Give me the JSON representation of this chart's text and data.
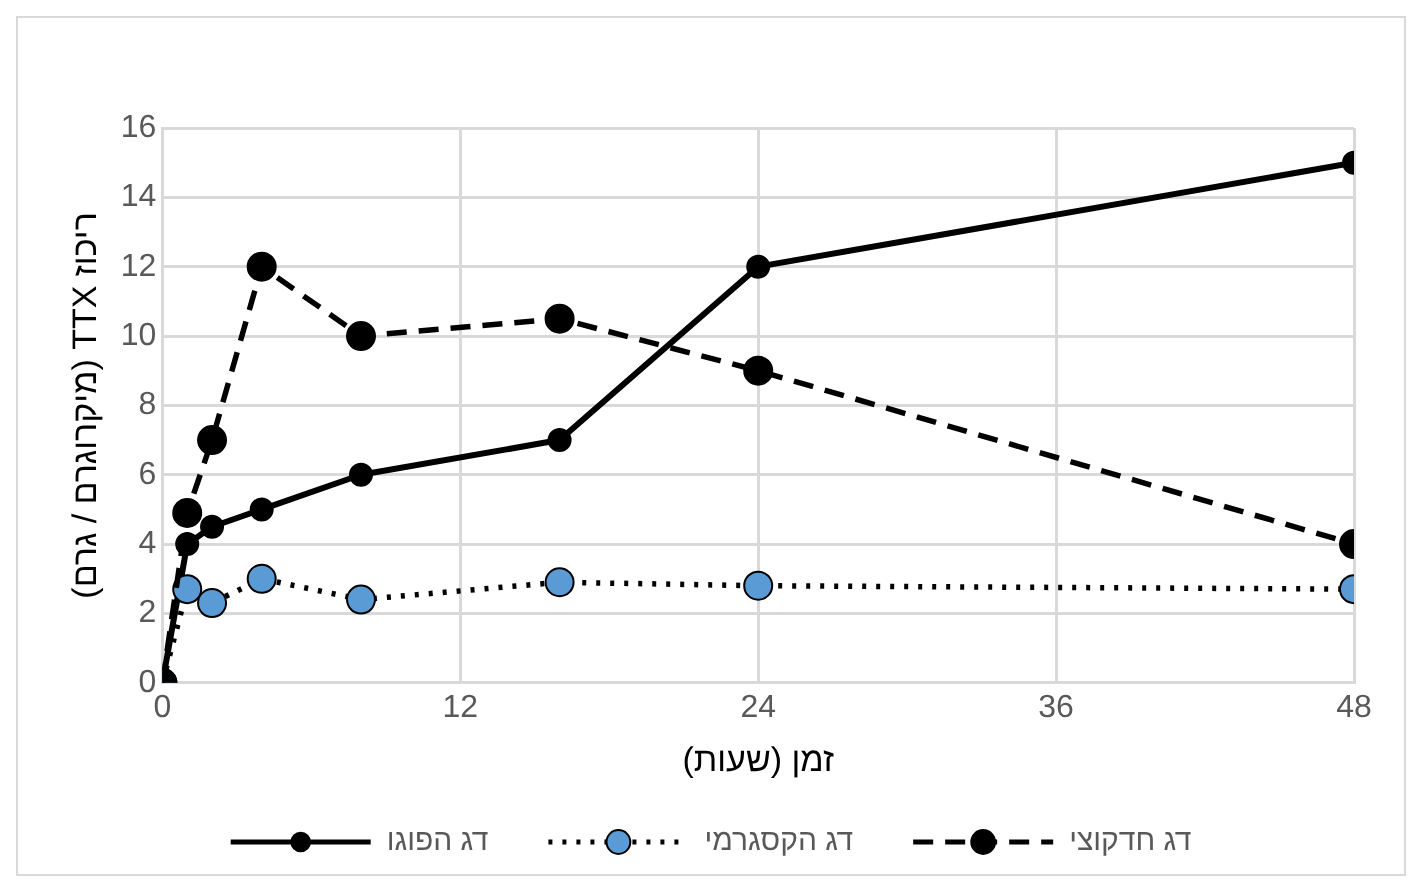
{
  "chart_data": {
    "type": "line",
    "xlabel": "זמן (שעות)",
    "ylabel": "ריכוז TTX (מיקרוגרם / גרם)",
    "x": [
      0,
      1,
      2,
      4,
      8,
      16,
      24,
      48
    ],
    "series": [
      {
        "name": "דג הפוגו",
        "color": "#000000",
        "line_style": "solid",
        "values": [
          0,
          4,
          4.5,
          5,
          6,
          7,
          12,
          15
        ]
      },
      {
        "name": "דג הקסגרמי",
        "color": "#5b9bd5",
        "line_style": "dotted",
        "values": [
          0,
          2.7,
          2.3,
          3,
          2.4,
          2.9,
          2.8,
          2.7
        ]
      },
      {
        "name": "דג חדקוצי",
        "color": "#000000",
        "line_style": "dashed",
        "values": [
          0,
          4.9,
          7,
          12,
          10,
          10.5,
          9,
          4
        ]
      }
    ],
    "xlim": [
      0,
      48
    ],
    "xticks": [
      0,
      12,
      24,
      36,
      48
    ],
    "ylim": [
      0,
      16
    ],
    "yticks": [
      0,
      2,
      4,
      6,
      8,
      10,
      12,
      14,
      16
    ],
    "grid": true,
    "legend": "bottom",
    "marker": "circle"
  }
}
